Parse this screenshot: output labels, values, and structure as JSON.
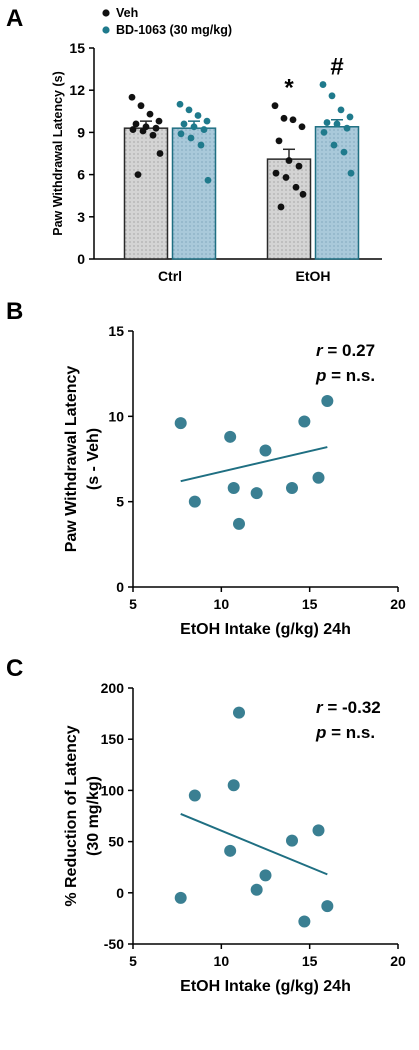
{
  "chart_data": [
    {
      "panel": "A",
      "type": "bar",
      "ylabel": "Paw Withdrawal Latency (s)",
      "ylim": [
        0,
        15
      ],
      "yticks": [
        0,
        3,
        6,
        9,
        12,
        15
      ],
      "categories": [
        "Ctrl",
        "EtOH"
      ],
      "legend": [
        {
          "name": "Veh",
          "color": "#111111"
        },
        {
          "name": "BD-1063 (30 mg/kg)",
          "color": "#1f7a8c"
        }
      ],
      "series": [
        {
          "name": "Veh",
          "bar_color": "#d4d4d4",
          "dot_color": "#111111",
          "values": [
            9.3,
            7.1
          ],
          "sem": [
            0.5,
            0.7
          ],
          "points": [
            [
              11.5,
              10.9,
              10.3,
              9.8,
              9.6,
              9.4,
              9.3,
              9.2,
              9.1,
              8.8,
              7.5,
              6.0
            ],
            [
              10.9,
              10.0,
              9.9,
              9.4,
              8.4,
              7.0,
              6.6,
              6.1,
              5.8,
              5.1,
              4.6,
              3.7
            ]
          ]
        },
        {
          "name": "BD-1063 (30 mg/kg)",
          "bar_color": "#a9c9da",
          "dot_color": "#1f7a8c",
          "values": [
            9.3,
            9.4
          ],
          "sem": [
            0.5,
            0.5
          ],
          "points": [
            [
              11.0,
              10.6,
              10.2,
              9.8,
              9.6,
              9.4,
              9.2,
              8.9,
              8.6,
              8.1,
              5.6
            ],
            [
              12.4,
              11.6,
              10.6,
              10.1,
              9.7,
              9.6,
              9.3,
              9.0,
              8.1,
              7.6,
              6.1
            ]
          ]
        }
      ],
      "annotations": [
        {
          "text": "*",
          "category": "EtOH",
          "series": "Veh"
        },
        {
          "text": "#",
          "category": "EtOH",
          "series": "BD-1063 (30 mg/kg)"
        }
      ]
    },
    {
      "panel": "B",
      "type": "scatter",
      "xlabel": "EtOH Intake (g/kg) 24h",
      "ylabel_lines": [
        "Paw Withdrawal Latency",
        "(s - Veh)"
      ],
      "xlim": [
        5,
        20
      ],
      "ylim": [
        0,
        15
      ],
      "xticks": [
        5,
        10,
        15,
        20
      ],
      "yticks": [
        0,
        5,
        10,
        15
      ],
      "point_color": "#3a7f92",
      "line_color": "#1f6f82",
      "x": [
        7.7,
        8.5,
        10.5,
        10.7,
        11.0,
        12.0,
        12.5,
        14.0,
        14.7,
        15.5,
        16.0
      ],
      "y": [
        9.6,
        5.0,
        8.8,
        5.8,
        3.7,
        5.5,
        8.0,
        5.8,
        9.7,
        6.4,
        10.9
      ],
      "fit": {
        "x": [
          7.7,
          16.0
        ],
        "y": [
          6.2,
          8.2
        ]
      },
      "stats": {
        "r_sym": "r",
        "r_val": " = 0.27",
        "p_sym": "p",
        "p_val": " = n.s."
      }
    },
    {
      "panel": "C",
      "type": "scatter",
      "xlabel": "EtOH Intake (g/kg) 24h",
      "ylabel_lines": [
        "% Reduction of Latency",
        "(30 mg/kg)"
      ],
      "xlim": [
        5,
        20
      ],
      "ylim": [
        -50,
        200
      ],
      "xticks": [
        5,
        10,
        15,
        20
      ],
      "yticks": [
        -50,
        0,
        50,
        100,
        150,
        200
      ],
      "point_color": "#3a7f92",
      "line_color": "#1f6f82",
      "x": [
        7.7,
        8.5,
        10.5,
        10.7,
        11.0,
        12.0,
        12.5,
        14.0,
        14.7,
        15.5,
        16.0
      ],
      "y": [
        -5,
        95,
        41,
        105,
        176,
        3,
        17,
        51,
        -28,
        61,
        -13
      ],
      "fit": {
        "x": [
          7.7,
          16.0
        ],
        "y": [
          77,
          18
        ]
      },
      "stats": {
        "r_sym": "r",
        "r_val": " = -0.32",
        "p_sym": "p",
        "p_val": " = n.s."
      }
    }
  ]
}
